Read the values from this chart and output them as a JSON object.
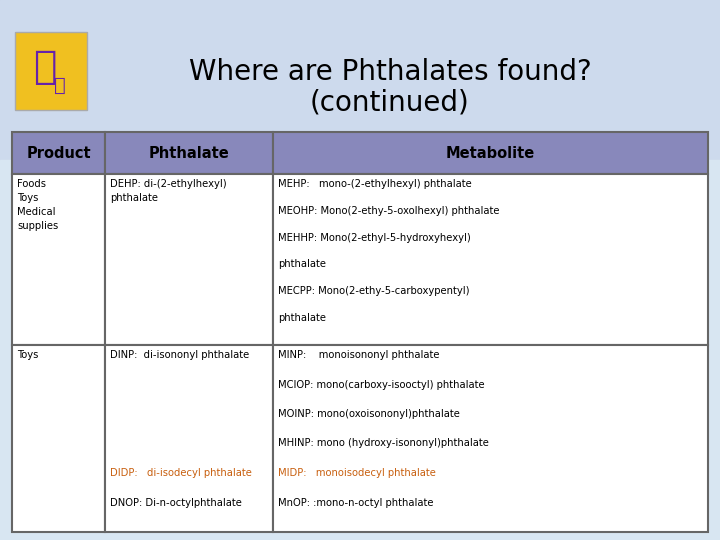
{
  "title_line1": "Where are Phthalates found?",
  "title_line2": "(continued)",
  "title_fontsize": 20,
  "bg_gradient_top": "#c8d8ec",
  "bg_gradient_bottom": "#dde8f4",
  "header_bg": "#8888bb",
  "header_text_color": "#000000",
  "table_border_color": "#666666",
  "cell_bg": "#ffffff",
  "col_headers": [
    "Product",
    "Phthalate",
    "Metabolite"
  ],
  "icon_bg": "#f0c020",
  "icon_text_color": "#6622aa",
  "row1_product": [
    "Foods",
    "Toys",
    "Medical",
    "supplies"
  ],
  "row1_phthalate": [
    "DEHP: di-(2-ethylhexyl)",
    "phthalate"
  ],
  "row1_metabolite": [
    [
      "MEHP:   mono-(2-ethylhexyl) phthalate",
      "black"
    ],
    [
      "MEOHP: Mono(2-ethy-5-oxolhexyl) phthalate",
      "black"
    ],
    [
      "MEHHP: Mono(2-ethyl-5-hydroxyhexyl)",
      "black"
    ],
    [
      "phthalate",
      "black"
    ],
    [
      "MECPP: Mono(2-ethy-5-carboxypentyl)",
      "black"
    ],
    [
      "phthalate",
      "black"
    ]
  ],
  "row2_product": [
    "Toys"
  ],
  "row2_phthalate": [
    [
      "DINP:  di-isononyl phthalate",
      "black"
    ],
    [
      "",
      "black"
    ],
    [
      "",
      "black"
    ],
    [
      "",
      "black"
    ],
    [
      "DIDP:   di-isodecyl phthalate",
      "#c86010"
    ],
    [
      "DNOP: Di-n-octylphthalate",
      "black"
    ]
  ],
  "row2_metabolite": [
    [
      "MINP:    monoisononyl phthalate",
      "black"
    ],
    [
      "MCIOP: mono(carboxy-isooctyl) phthalate",
      "black"
    ],
    [
      "MOINP: mono(oxoisononyl)phthalate",
      "black"
    ],
    [
      "MHINP: mono (hydroxy-isononyl)phthalate",
      "black"
    ],
    [
      "MIDP:   monoisodecyl phthalate",
      "#c86010"
    ],
    [
      "MnOP: :mono-n-octyl phthalate",
      "black"
    ]
  ]
}
